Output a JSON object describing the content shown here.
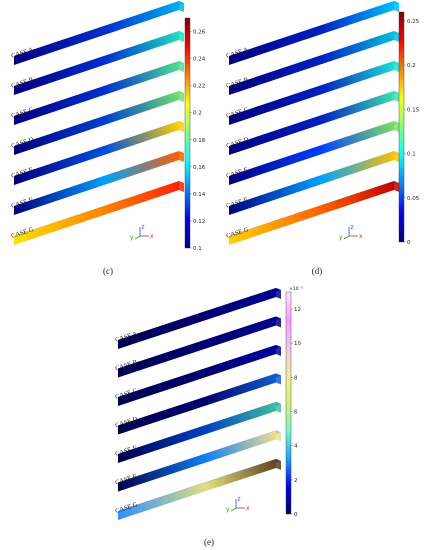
{
  "panels": [
    {
      "id": "c",
      "caption": "(c)",
      "case_labels": [
        "CASE A",
        "CASE B",
        "CASE C",
        "CASE D",
        "CASE E",
        "CASE F",
        "CASE G"
      ],
      "colorbar": {
        "min": 0.1,
        "max": 0.27,
        "ticks": [
          "0.26",
          "0.24",
          "0.22",
          "0.2",
          "0.18",
          "0.16",
          "0.14",
          "0.12",
          "0.1"
        ],
        "exponent": ""
      },
      "axes": [
        "z",
        "y",
        "x"
      ]
    },
    {
      "id": "d",
      "caption": "(d)",
      "case_labels": [
        "CASE A",
        "CASE B",
        "CASE C",
        "CASE D",
        "CASE E",
        "CASE F",
        "CASE G"
      ],
      "colorbar": {
        "min": 0,
        "max": 0.26,
        "ticks": [
          "0.25",
          "0.2",
          "0.15",
          "0.1",
          "0.05",
          "0"
        ],
        "exponent": ""
      },
      "axes": [
        "z",
        "y",
        "x"
      ]
    },
    {
      "id": "e",
      "caption": "(e)",
      "case_labels": [
        "CASE A",
        "CASE B",
        "CASE C",
        "CASE D",
        "CASE E",
        "CASE F",
        "CASE G"
      ],
      "colorbar": {
        "min": 0,
        "max": 13,
        "ticks": [
          "12",
          "10",
          "8",
          "6",
          "4",
          "2",
          "0"
        ],
        "exponent": "×10⁻³"
      },
      "axes": [
        "z",
        "y",
        "x"
      ]
    }
  ],
  "colors": {
    "jet": [
      "#00007f",
      "#0000ff",
      "#0080ff",
      "#00ffff",
      "#80ff80",
      "#ffff00",
      "#ff8000",
      "#ff0000",
      "#7f0000"
    ],
    "thermal": [
      "#000066",
      "#0000ff",
      "#1fa3ff",
      "#7ff7c8",
      "#d8f07a",
      "#f7ed9a",
      "#f4c4ec",
      "#ff99ff",
      "#ffe8ff"
    ]
  }
}
